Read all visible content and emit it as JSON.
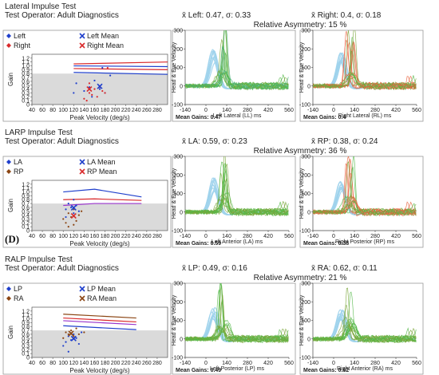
{
  "panel_label": "(D)",
  "legend_labels": [
    "Left",
    "Left Mean",
    "Right",
    "Right Mean",
    "LA",
    "LA Mean",
    "RP",
    "RP Mean",
    "LP",
    "LP Mean",
    "RA",
    "RA Mean"
  ],
  "common": {
    "gain_ylabel": "Gain",
    "gain_xlabel": "Peak Velocity (deg/s)",
    "gain_xticks": [
      "40",
      "60",
      "80",
      "100",
      "120",
      "140",
      "160",
      "180",
      "200",
      "220",
      "240",
      "260",
      "280"
    ],
    "gain_yticks": [
      "0",
      "0.1",
      "0.2",
      "0.3",
      "0.4",
      "0.5",
      "0.6",
      "0.7",
      "0.8",
      "0.9",
      "1.0",
      "1.1",
      "1.2"
    ],
    "vel_ylabel": "Head & Eye Velocity",
    "vel_xticks": [
      "-140",
      "0",
      "140",
      "280",
      "420",
      "560"
    ],
    "vel_yticks": [
      "-100",
      "0",
      "100",
      "200",
      "300"
    ],
    "vel_xlabel_suffix": "ms",
    "colors": {
      "left_blue": "#1f3fcc",
      "right_red": "#d9292b",
      "brown": "#8b4513",
      "purple": "#9933cc",
      "head_cyan": "#9fd3ec",
      "eye_green": "#55b849",
      "eye_orange": "#e8623c",
      "eye_olive": "#7aa63a",
      "normal_band": "#dadada"
    }
  },
  "chart_data": [
    {
      "type": "scatter",
      "title": "Lateral Impulse Test",
      "operator": "Test Operator: Adult Diagnostics",
      "stats_left": "x̄ Left: 0.47, σ: 0.33",
      "stats_right": "x̄ Right: 0.4, σ: 0.18",
      "asymmetry": "Relative Asymmetry: 15 %",
      "legend": [
        {
          "label": "Left",
          "marker": "diamond",
          "color": "#1f3fcc"
        },
        {
          "label": "Left Mean",
          "marker": "x",
          "color": "#1f3fcc"
        },
        {
          "label": "Right",
          "marker": "diamond",
          "color": "#d9292b"
        },
        {
          "label": "Right Mean",
          "marker": "x",
          "color": "#d9292b"
        }
      ],
      "xlim": [
        40,
        300
      ],
      "ylim": [
        0,
        1.3
      ],
      "normal_band_max": 0.8,
      "series": [
        {
          "name": "Left",
          "color": "#1f3fcc",
          "points": [
            [
              120,
              0.3
            ],
            [
              125,
              0.55
            ],
            [
              140,
              0.35
            ],
            [
              150,
              0.45
            ],
            [
              155,
              0.2
            ],
            [
              160,
              0.62
            ],
            [
              170,
              0.4
            ],
            [
              175,
              0.95
            ],
            [
              180,
              0.3
            ],
            [
              190,
              0.75
            ]
          ]
        },
        {
          "name": "Right",
          "color": "#d9292b",
          "points": [
            [
              140,
              0.15
            ],
            [
              145,
              0.1
            ],
            [
              150,
              0.3
            ],
            [
              150,
              0.55
            ],
            [
              155,
              0.25
            ],
            [
              160,
              0.4
            ],
            [
              165,
              0.2
            ],
            [
              170,
              0.45
            ],
            [
              175,
              0.35
            ],
            [
              180,
              0.3
            ],
            [
              185,
              0.95
            ]
          ]
        }
      ],
      "means": [
        {
          "name": "Left Mean",
          "x": 170,
          "y": 0.47,
          "color": "#1f3fcc"
        },
        {
          "name": "Right Mean",
          "x": 150,
          "y": 0.4,
          "color": "#d9292b"
        }
      ],
      "norm_curves": [
        {
          "color": "#1f3fcc",
          "points": [
            [
              120,
              1.0
            ],
            [
              300,
              0.98
            ]
          ]
        },
        {
          "color": "#1f3fcc",
          "points": [
            [
              120,
              0.83
            ],
            [
              300,
              0.78
            ]
          ]
        },
        {
          "color": "#d9292b",
          "points": [
            [
              120,
              1.05
            ],
            [
              300,
              1.1
            ]
          ]
        },
        {
          "color": "#d9292b",
          "points": [
            [
              120,
              0.93
            ],
            [
              300,
              0.9
            ]
          ]
        }
      ],
      "vel_left": {
        "xlabel": "Left Lateral (LL) ms",
        "mean_gain": "Mean Gains: 0.47",
        "eye_kind": "green_teal",
        "head_peak": 170,
        "eye_peak": 85,
        "spikes": 8
      },
      "vel_right": {
        "xlabel": "Right Lateral (RL) ms",
        "mean_gain": "Mean Gains: 0.4",
        "eye_kind": "orange",
        "head_peak": 150,
        "eye_peak": 70,
        "spikes": 10
      }
    },
    {
      "type": "scatter",
      "title": "LARP Impulse Test",
      "operator": "Test Operator: Adult Diagnostics",
      "stats_left": "x̄ LA: 0.59, σ: 0.23",
      "stats_right": "x̄ RP: 0.38, σ: 0.24",
      "asymmetry": "Relative Asymmetry: 36 %",
      "legend": [
        {
          "label": "LA",
          "marker": "diamond",
          "color": "#1f3fcc"
        },
        {
          "label": "LA Mean",
          "marker": "x",
          "color": "#1f3fcc"
        },
        {
          "label": "RP",
          "marker": "diamond",
          "color": "#8b4513"
        },
        {
          "label": "RP Mean",
          "marker": "x",
          "color": "#d9292b"
        }
      ],
      "xlim": [
        40,
        300
      ],
      "ylim": [
        0,
        1.3
      ],
      "normal_band_max": 0.7,
      "series": [
        {
          "name": "LA",
          "color": "#1f3fcc",
          "points": [
            [
              105,
              0.55
            ],
            [
              110,
              0.7
            ],
            [
              115,
              0.6
            ],
            [
              120,
              0.8
            ],
            [
              120,
              0.45
            ],
            [
              125,
              0.65
            ],
            [
              130,
              0.5
            ],
            [
              105,
              0.35
            ]
          ]
        },
        {
          "name": "RP",
          "color": "#8b4513",
          "points": [
            [
              100,
              0.3
            ],
            [
              105,
              0.2
            ],
            [
              110,
              0.45
            ],
            [
              115,
              0.35
            ],
            [
              120,
              0.15
            ],
            [
              120,
              0.55
            ],
            [
              125,
              0.25
            ],
            [
              130,
              0.4
            ],
            [
              110,
              0.1
            ],
            [
              135,
              0.5
            ]
          ]
        }
      ],
      "means": [
        {
          "name": "LA Mean",
          "x": 120,
          "y": 0.59,
          "color": "#1f3fcc"
        },
        {
          "name": "RP Mean",
          "x": 120,
          "y": 0.38,
          "color": "#d9292b"
        }
      ],
      "norm_curves": [
        {
          "color": "#1f3fcc",
          "points": [
            [
              100,
              1.0
            ],
            [
              160,
              1.07
            ],
            [
              250,
              0.87
            ]
          ]
        },
        {
          "color": "#d9292b",
          "points": [
            [
              100,
              0.8
            ],
            [
              160,
              0.82
            ],
            [
              250,
              0.78
            ]
          ]
        },
        {
          "color": "#9933cc",
          "points": [
            [
              100,
              0.65
            ],
            [
              160,
              0.7
            ],
            [
              250,
              0.7
            ]
          ]
        }
      ],
      "vel_left": {
        "xlabel": "Left Anterior (LA) ms",
        "mean_gain": "Mean Gains: 0.59",
        "eye_kind": "green_olive",
        "head_peak": 150,
        "eye_peak": 95,
        "spikes": 9
      },
      "vel_right": {
        "xlabel": "Right Posterior (RP) ms",
        "mean_gain": "Mean Gains: 0.38",
        "eye_kind": "orange",
        "head_peak": 145,
        "eye_peak": 75,
        "spikes": 7
      }
    },
    {
      "type": "scatter",
      "title": "RALP Impulse Test",
      "operator": "Test Operator: Adult Diagnostics",
      "stats_left": "x̄ LP: 0.49, σ: 0.16",
      "stats_right": "x̄ RA: 0.62, σ: 0.11",
      "asymmetry": "Relative Asymmetry: 21 %",
      "legend": [
        {
          "label": "LP",
          "marker": "diamond",
          "color": "#1f3fcc"
        },
        {
          "label": "LP Mean",
          "marker": "x",
          "color": "#1f3fcc"
        },
        {
          "label": "RA",
          "marker": "diamond",
          "color": "#8b4513"
        },
        {
          "label": "RA Mean",
          "marker": "x",
          "color": "#8b4513"
        }
      ],
      "xlim": [
        40,
        300
      ],
      "ylim": [
        0,
        1.3
      ],
      "normal_band_max": 0.7,
      "series": [
        {
          "name": "LP",
          "color": "#1f3fcc",
          "points": [
            [
              100,
              0.3
            ],
            [
              105,
              0.4
            ],
            [
              110,
              0.55
            ],
            [
              115,
              0.45
            ],
            [
              120,
              0.6
            ],
            [
              125,
              0.5
            ],
            [
              130,
              0.35
            ],
            [
              135,
              0.65
            ],
            [
              110,
              0.15
            ]
          ]
        },
        {
          "name": "RA",
          "color": "#8b4513",
          "points": [
            [
              100,
              0.5
            ],
            [
              105,
              0.65
            ],
            [
              110,
              0.6
            ],
            [
              115,
              0.7
            ],
            [
              120,
              0.55
            ],
            [
              125,
              0.75
            ],
            [
              130,
              0.6
            ],
            [
              140,
              0.65
            ]
          ]
        }
      ],
      "means": [
        {
          "name": "LP Mean",
          "x": 120,
          "y": 0.49,
          "color": "#1f3fcc"
        },
        {
          "name": "RA Mean",
          "x": 115,
          "y": 0.62,
          "color": "#8b4513"
        }
      ],
      "norm_curves": [
        {
          "color": "#8b4513",
          "points": [
            [
              100,
              1.12
            ],
            [
              240,
              1.02
            ]
          ]
        },
        {
          "color": "#d9292b",
          "points": [
            [
              100,
              1.02
            ],
            [
              240,
              0.92
            ]
          ]
        },
        {
          "color": "#9933cc",
          "points": [
            [
              100,
              0.95
            ],
            [
              240,
              0.85
            ]
          ]
        },
        {
          "color": "#1f3fcc",
          "points": [
            [
              100,
              0.82
            ],
            [
              240,
              0.72
            ]
          ]
        }
      ],
      "vel_left": {
        "xlabel": "Left Posterior (LP) ms",
        "mean_gain": "Mean Gains: 0.49",
        "eye_kind": "green_olive",
        "head_peak": 140,
        "eye_peak": 85,
        "spikes": 6
      },
      "vel_right": {
        "xlabel": "Right Anterior (RA) ms",
        "mean_gain": "Mean Gains: 0.62",
        "eye_kind": "green_olive",
        "head_peak": 130,
        "eye_peak": 95,
        "spikes": 3
      }
    }
  ]
}
